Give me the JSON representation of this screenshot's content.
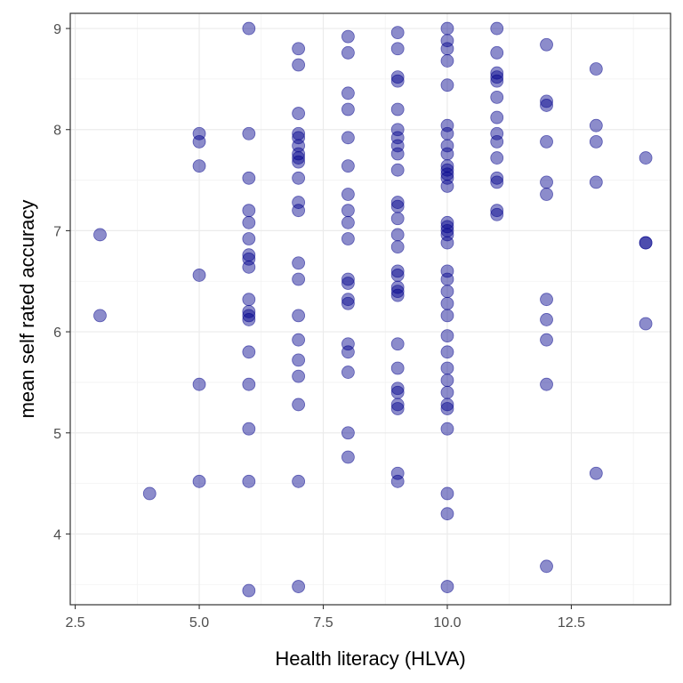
{
  "chart_data": {
    "type": "scatter",
    "title": "",
    "xlabel": "Health literacy (HLVA)",
    "ylabel": "mean self rated accuracy",
    "xlim": [
      2.4,
      14.5
    ],
    "ylim": [
      3.3,
      9.15
    ],
    "x_ticks": [
      2.5,
      5.0,
      7.5,
      10.0,
      12.5
    ],
    "x_tick_labels": [
      "2.5",
      "5.0",
      "7.5",
      "10.0",
      "12.5"
    ],
    "y_ticks": [
      4,
      5,
      6,
      7,
      8,
      9
    ],
    "y_tick_labels": [
      "4",
      "5",
      "6",
      "7",
      "8",
      "9"
    ],
    "grid": true,
    "point_color": "#00008B",
    "points": [
      {
        "x": 3,
        "y": 6.96
      },
      {
        "x": 3,
        "y": 6.16
      },
      {
        "x": 4,
        "y": 4.4
      },
      {
        "x": 5,
        "y": 7.96
      },
      {
        "x": 5,
        "y": 7.88
      },
      {
        "x": 5,
        "y": 7.64
      },
      {
        "x": 5,
        "y": 6.56
      },
      {
        "x": 5,
        "y": 5.48
      },
      {
        "x": 5,
        "y": 4.52
      },
      {
        "x": 6,
        "y": 9.0
      },
      {
        "x": 6,
        "y": 7.96
      },
      {
        "x": 6,
        "y": 7.52
      },
      {
        "x": 6,
        "y": 7.2
      },
      {
        "x": 6,
        "y": 7.08
      },
      {
        "x": 6,
        "y": 6.92
      },
      {
        "x": 6,
        "y": 6.76
      },
      {
        "x": 6,
        "y": 6.72
      },
      {
        "x": 6,
        "y": 6.64
      },
      {
        "x": 6,
        "y": 6.32
      },
      {
        "x": 6,
        "y": 6.2
      },
      {
        "x": 6,
        "y": 6.16
      },
      {
        "x": 6,
        "y": 6.12
      },
      {
        "x": 6,
        "y": 5.8
      },
      {
        "x": 6,
        "y": 5.48
      },
      {
        "x": 6,
        "y": 5.04
      },
      {
        "x": 6,
        "y": 4.52
      },
      {
        "x": 6,
        "y": 3.44
      },
      {
        "x": 7,
        "y": 8.8
      },
      {
        "x": 7,
        "y": 8.64
      },
      {
        "x": 7,
        "y": 8.16
      },
      {
        "x": 7,
        "y": 7.96
      },
      {
        "x": 7,
        "y": 7.92
      },
      {
        "x": 7,
        "y": 7.84
      },
      {
        "x": 7,
        "y": 7.76
      },
      {
        "x": 7,
        "y": 7.72
      },
      {
        "x": 7,
        "y": 7.68
      },
      {
        "x": 7,
        "y": 7.52
      },
      {
        "x": 7,
        "y": 7.28
      },
      {
        "x": 7,
        "y": 7.2
      },
      {
        "x": 7,
        "y": 6.68
      },
      {
        "x": 7,
        "y": 6.52
      },
      {
        "x": 7,
        "y": 6.16
      },
      {
        "x": 7,
        "y": 5.92
      },
      {
        "x": 7,
        "y": 5.72
      },
      {
        "x": 7,
        "y": 5.56
      },
      {
        "x": 7,
        "y": 5.28
      },
      {
        "x": 7,
        "y": 4.52
      },
      {
        "x": 7,
        "y": 3.48
      },
      {
        "x": 8,
        "y": 8.92
      },
      {
        "x": 8,
        "y": 8.76
      },
      {
        "x": 8,
        "y": 8.36
      },
      {
        "x": 8,
        "y": 8.2
      },
      {
        "x": 8,
        "y": 7.92
      },
      {
        "x": 8,
        "y": 7.64
      },
      {
        "x": 8,
        "y": 7.36
      },
      {
        "x": 8,
        "y": 7.2
      },
      {
        "x": 8,
        "y": 7.08
      },
      {
        "x": 8,
        "y": 6.92
      },
      {
        "x": 8,
        "y": 6.52
      },
      {
        "x": 8,
        "y": 6.48
      },
      {
        "x": 8,
        "y": 6.32
      },
      {
        "x": 8,
        "y": 6.28
      },
      {
        "x": 8,
        "y": 5.88
      },
      {
        "x": 8,
        "y": 5.8
      },
      {
        "x": 8,
        "y": 5.6
      },
      {
        "x": 8,
        "y": 5.0
      },
      {
        "x": 8,
        "y": 4.76
      },
      {
        "x": 9,
        "y": 8.96
      },
      {
        "x": 9,
        "y": 8.8
      },
      {
        "x": 9,
        "y": 8.52
      },
      {
        "x": 9,
        "y": 8.48
      },
      {
        "x": 9,
        "y": 8.2
      },
      {
        "x": 9,
        "y": 8.0
      },
      {
        "x": 9,
        "y": 7.92
      },
      {
        "x": 9,
        "y": 7.84
      },
      {
        "x": 9,
        "y": 7.76
      },
      {
        "x": 9,
        "y": 7.6
      },
      {
        "x": 9,
        "y": 7.28
      },
      {
        "x": 9,
        "y": 7.24
      },
      {
        "x": 9,
        "y": 7.12
      },
      {
        "x": 9,
        "y": 6.96
      },
      {
        "x": 9,
        "y": 6.84
      },
      {
        "x": 9,
        "y": 6.6
      },
      {
        "x": 9,
        "y": 6.56
      },
      {
        "x": 9,
        "y": 6.44
      },
      {
        "x": 9,
        "y": 6.4
      },
      {
        "x": 9,
        "y": 6.36
      },
      {
        "x": 9,
        "y": 5.88
      },
      {
        "x": 9,
        "y": 5.64
      },
      {
        "x": 9,
        "y": 5.44
      },
      {
        "x": 9,
        "y": 5.4
      },
      {
        "x": 9,
        "y": 5.28
      },
      {
        "x": 9,
        "y": 5.24
      },
      {
        "x": 9,
        "y": 4.6
      },
      {
        "x": 9,
        "y": 4.52
      },
      {
        "x": 10,
        "y": 9.0
      },
      {
        "x": 10,
        "y": 8.88
      },
      {
        "x": 10,
        "y": 8.8
      },
      {
        "x": 10,
        "y": 8.68
      },
      {
        "x": 10,
        "y": 8.44
      },
      {
        "x": 10,
        "y": 8.04
      },
      {
        "x": 10,
        "y": 7.96
      },
      {
        "x": 10,
        "y": 7.84
      },
      {
        "x": 10,
        "y": 7.76
      },
      {
        "x": 10,
        "y": 7.64
      },
      {
        "x": 10,
        "y": 7.6
      },
      {
        "x": 10,
        "y": 7.56
      },
      {
        "x": 10,
        "y": 7.52
      },
      {
        "x": 10,
        "y": 7.44
      },
      {
        "x": 10,
        "y": 7.08
      },
      {
        "x": 10,
        "y": 7.04
      },
      {
        "x": 10,
        "y": 7.0
      },
      {
        "x": 10,
        "y": 6.96
      },
      {
        "x": 10,
        "y": 6.88
      },
      {
        "x": 10,
        "y": 6.6
      },
      {
        "x": 10,
        "y": 6.52
      },
      {
        "x": 10,
        "y": 6.4
      },
      {
        "x": 10,
        "y": 6.28
      },
      {
        "x": 10,
        "y": 6.16
      },
      {
        "x": 10,
        "y": 5.96
      },
      {
        "x": 10,
        "y": 5.8
      },
      {
        "x": 10,
        "y": 5.64
      },
      {
        "x": 10,
        "y": 5.52
      },
      {
        "x": 10,
        "y": 5.4
      },
      {
        "x": 10,
        "y": 5.28
      },
      {
        "x": 10,
        "y": 5.24
      },
      {
        "x": 10,
        "y": 5.04
      },
      {
        "x": 10,
        "y": 4.4
      },
      {
        "x": 10,
        "y": 4.2
      },
      {
        "x": 10,
        "y": 3.48
      },
      {
        "x": 11,
        "y": 9.0
      },
      {
        "x": 11,
        "y": 8.76
      },
      {
        "x": 11,
        "y": 8.56
      },
      {
        "x": 11,
        "y": 8.52
      },
      {
        "x": 11,
        "y": 8.48
      },
      {
        "x": 11,
        "y": 8.32
      },
      {
        "x": 11,
        "y": 8.12
      },
      {
        "x": 11,
        "y": 7.96
      },
      {
        "x": 11,
        "y": 7.88
      },
      {
        "x": 11,
        "y": 7.72
      },
      {
        "x": 11,
        "y": 7.52
      },
      {
        "x": 11,
        "y": 7.48
      },
      {
        "x": 11,
        "y": 7.2
      },
      {
        "x": 11,
        "y": 7.16
      },
      {
        "x": 12,
        "y": 8.84
      },
      {
        "x": 12,
        "y": 8.28
      },
      {
        "x": 12,
        "y": 8.24
      },
      {
        "x": 12,
        "y": 7.88
      },
      {
        "x": 12,
        "y": 7.48
      },
      {
        "x": 12,
        "y": 7.36
      },
      {
        "x": 12,
        "y": 6.32
      },
      {
        "x": 12,
        "y": 6.12
      },
      {
        "x": 12,
        "y": 5.92
      },
      {
        "x": 12,
        "y": 5.48
      },
      {
        "x": 12,
        "y": 3.68
      },
      {
        "x": 13,
        "y": 8.6
      },
      {
        "x": 13,
        "y": 8.04
      },
      {
        "x": 13,
        "y": 7.88
      },
      {
        "x": 13,
        "y": 7.48
      },
      {
        "x": 13,
        "y": 4.6
      },
      {
        "x": 14,
        "y": 7.72
      },
      {
        "x": 14,
        "y": 6.88
      },
      {
        "x": 14,
        "y": 6.88
      },
      {
        "x": 14,
        "y": 6.08
      }
    ]
  }
}
